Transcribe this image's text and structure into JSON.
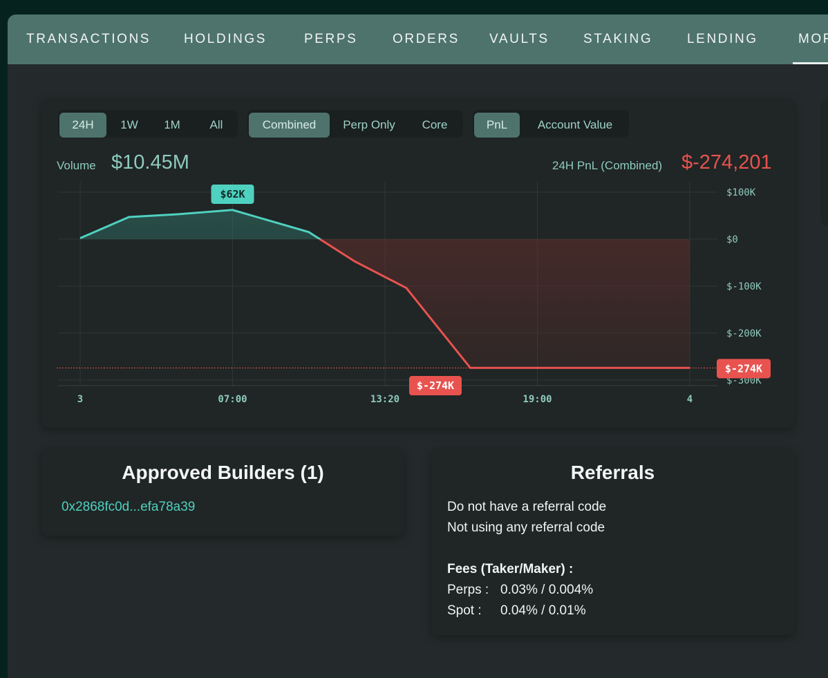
{
  "tabs": [
    {
      "label": "TRANSACTIONS"
    },
    {
      "label": "HOLDINGS"
    },
    {
      "label": "PERPS"
    },
    {
      "label": "ORDERS"
    },
    {
      "label": "VAULTS"
    },
    {
      "label": "STAKING"
    },
    {
      "label": "LENDING"
    },
    {
      "label": "MOR"
    }
  ],
  "range_buttons": [
    "24H",
    "1W",
    "1M",
    "All"
  ],
  "scope_buttons": [
    "Combined",
    "Perp Only",
    "Core"
  ],
  "metric_buttons": [
    "PnL",
    "Account Value"
  ],
  "volume": {
    "label": "Volume",
    "value": "$10.45M"
  },
  "pnl": {
    "label": "24H PnL (Combined)",
    "value": "$-274,201"
  },
  "colors": {
    "positive": "#4fd1c0",
    "negative": "#e8534f",
    "accent": "#4e736c"
  },
  "chart_data": {
    "type": "area",
    "x": [
      "3",
      "04:00",
      "05:30",
      "07:00",
      "10:20",
      "12:00",
      "13:20",
      "15:00",
      "4"
    ],
    "values": [
      2000,
      47000,
      53000,
      62000,
      15000,
      -47000,
      -104000,
      -274000,
      -274000
    ],
    "y_ticks": [
      "$100K",
      "$0",
      "$-100K",
      "$-200K",
      "$-300K"
    ],
    "y_tick_values": [
      100000,
      0,
      -100000,
      -200000,
      -300000
    ],
    "x_ticks": [
      "3",
      "07:00",
      "13:20",
      "19:00",
      "4"
    ],
    "ylim": [
      -310000,
      100000
    ],
    "peak_label": "$62K",
    "low_label": "$-274K",
    "current_label": "$-274K",
    "grid": true
  },
  "builders": {
    "title": "Approved Builders (1)",
    "items": [
      "0x2868fc0d...efa78a39"
    ]
  },
  "referrals": {
    "title": "Referrals",
    "line1": "Do not have a referral code",
    "line2": "Not using any referral code",
    "fees_title": "Fees (Taker/Maker) :",
    "perps_label": "Perps :",
    "perps_value": "0.03% / 0.004%",
    "spot_label": "Spot :",
    "spot_value": "0.04% / 0.01%"
  }
}
